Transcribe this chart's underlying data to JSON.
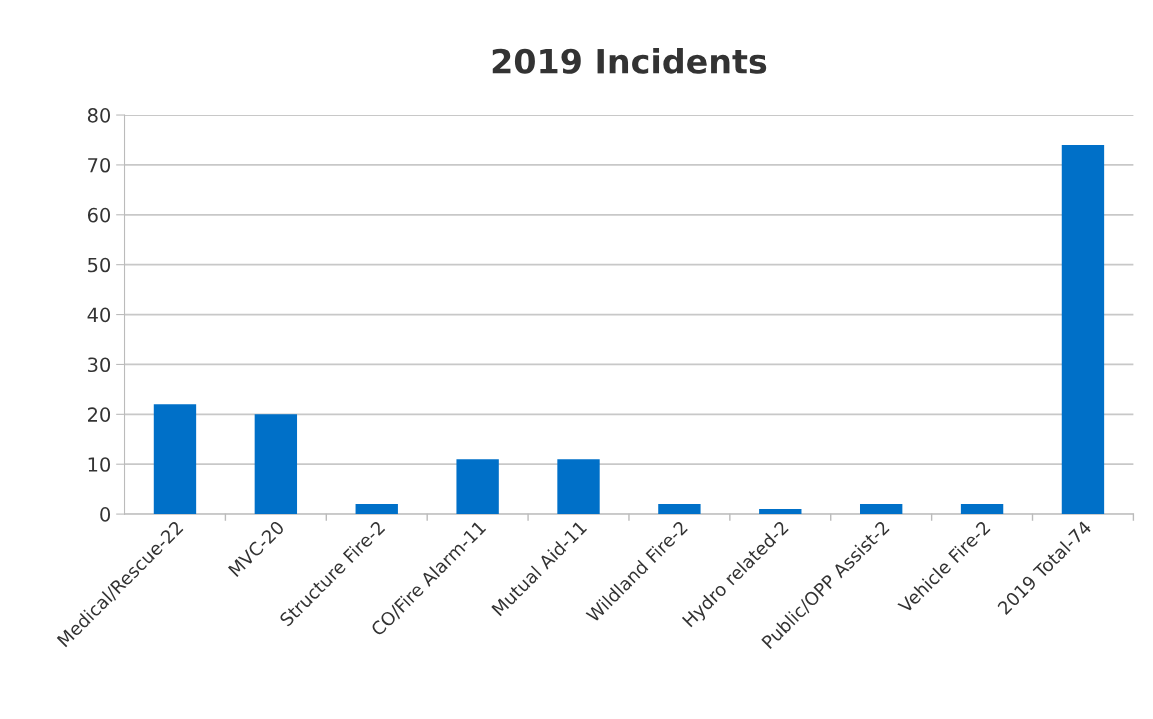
{
  "chart_data": {
    "type": "bar",
    "title": "2019 Incidents",
    "categories": [
      "Medical/Rescue-22",
      "MVC-20",
      "Structure Fire-2",
      "CO/Fire Alarm-11",
      "Mutual Aid-11",
      "Wildland Fire-2",
      "Hydro related-2",
      "Public/OPP Assist-2",
      "Vehicle Fire-2",
      "2019 Total-74"
    ],
    "values": [
      22,
      20,
      2,
      11,
      11,
      2,
      1,
      2,
      2,
      74
    ],
    "color": "#0070c8",
    "ylim": [
      0,
      80
    ],
    "yticks": [
      0,
      10,
      20,
      30,
      40,
      50,
      60,
      70,
      80
    ],
    "grid": "y"
  }
}
